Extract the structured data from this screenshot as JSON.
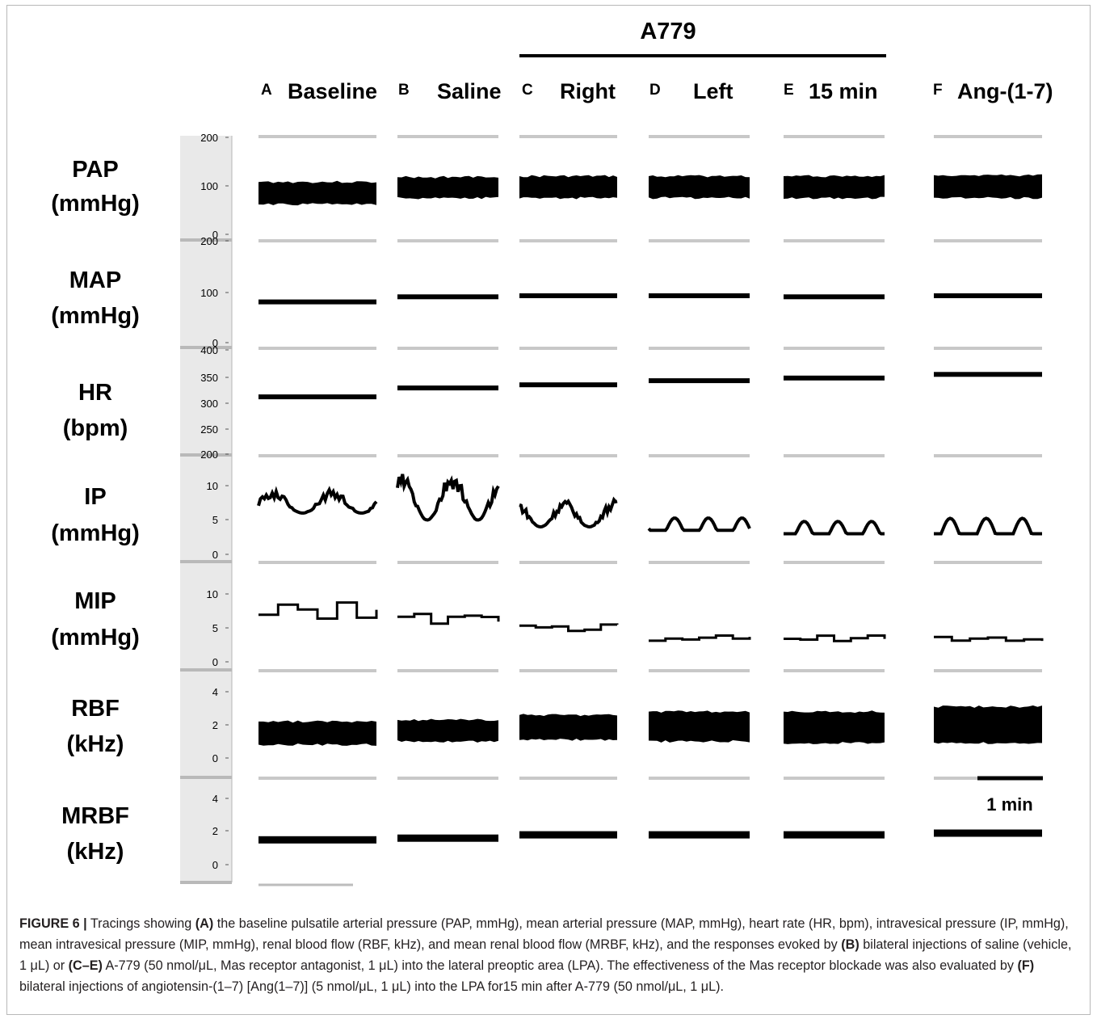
{
  "group_label": "A779",
  "panels": [
    {
      "letter": "A",
      "label": "Baseline"
    },
    {
      "letter": "B",
      "label": "Saline"
    },
    {
      "letter": "C",
      "label": "Right"
    },
    {
      "letter": "D",
      "label": "Left"
    },
    {
      "letter": "E",
      "label": "15 min"
    },
    {
      "letter": "F",
      "label": "Ang-(1-7)"
    }
  ],
  "rows": [
    {
      "name": "PAP",
      "unit": "(mmHg)",
      "ticks": [
        "200",
        "100",
        "0"
      ]
    },
    {
      "name": "MAP",
      "unit": "(mmHg)",
      "ticks": [
        "200",
        "100",
        "0"
      ]
    },
    {
      "name": "HR",
      "unit": "(bpm)",
      "ticks": [
        "400",
        "350",
        "300",
        "250",
        "200"
      ]
    },
    {
      "name": "IP",
      "unit": "(mmHg)",
      "ticks": [
        "10",
        "5",
        "0"
      ]
    },
    {
      "name": "MIP",
      "unit": "(mmHg)",
      "ticks": [
        "10",
        "5",
        "0"
      ]
    },
    {
      "name": "RBF",
      "unit": "(kHz)",
      "ticks": [
        "4",
        "2",
        "0"
      ]
    },
    {
      "name": "MRBF",
      "unit": "(kHz)",
      "ticks": [
        "4",
        "2",
        "0"
      ]
    }
  ],
  "scale_bar_label": "1 min",
  "chart_data": {
    "type": "line",
    "x": [
      "Baseline",
      "Saline",
      "Right",
      "Left",
      "15 min",
      "Ang-(1-7)"
    ],
    "series": [
      {
        "name": "PAP",
        "values": [
          [
            62,
            108
          ],
          [
            75,
            118
          ],
          [
            75,
            120
          ],
          [
            75,
            120
          ],
          [
            75,
            120
          ],
          [
            75,
            122
          ]
        ]
      },
      {
        "name": "MAP",
        "values": [
          80,
          90,
          92,
          92,
          90,
          92
        ]
      },
      {
        "name": "HR",
        "values": [
          310,
          327,
          333,
          341,
          346,
          353
        ]
      },
      {
        "name": "IP",
        "values": [
          [
            6,
            9.5
          ],
          [
            5,
            12
          ],
          [
            4,
            8
          ],
          [
            3.5,
            5.5
          ],
          [
            3,
            5
          ],
          [
            3,
            5.5
          ]
        ]
      },
      {
        "name": "MIP",
        "values": [
          7.5,
          6.5,
          5,
          3.5,
          3.5,
          3.5
        ]
      },
      {
        "name": "RBF",
        "values": [
          [
            0.8,
            2.2
          ],
          [
            1.0,
            2.3
          ],
          [
            1.1,
            2.6
          ],
          [
            1.0,
            2.8
          ],
          [
            0.9,
            2.8
          ],
          [
            0.9,
            3.1
          ]
        ]
      },
      {
        "name": "MRBF",
        "values": [
          1.5,
          1.6,
          1.8,
          1.8,
          1.8,
          1.9
        ]
      }
    ]
  },
  "caption": {
    "fig_label": "FIGURE 6 |",
    "parts": [
      {
        "t": " Tracings showing ",
        "b": false
      },
      {
        "t": "(A)",
        "b": true
      },
      {
        "t": " the baseline pulsatile arterial pressure (PAP, mmHg), mean arterial pressure (MAP, mmHg), heart rate (HR, bpm), intravesical pressure (IP, mmHg), mean intravesical pressure (MIP, mmHg), renal blood flow (RBF, kHz), and mean renal blood flow (MRBF, kHz), and the responses evoked by ",
        "b": false
      },
      {
        "t": "(B)",
        "b": true
      },
      {
        "t": " bilateral injections of saline (vehicle, 1 μL) or ",
        "b": false
      },
      {
        "t": "(C–E)",
        "b": true
      },
      {
        "t": " A-779 (50 nmol/μL, Mas receptor antagonist, 1 μL) into the lateral preoptic area (LPA). The effectiveness of the Mas receptor blockade was also evaluated by ",
        "b": false
      },
      {
        "t": "(F)",
        "b": true
      },
      {
        "t": " bilateral injections of angiotensin-(1–7) [Ang(1–7)] (5 nmol/μL, 1 μL) into the LPA for15 min after A-779 (50 nmol/μL, 1 μL).",
        "b": false
      }
    ]
  }
}
